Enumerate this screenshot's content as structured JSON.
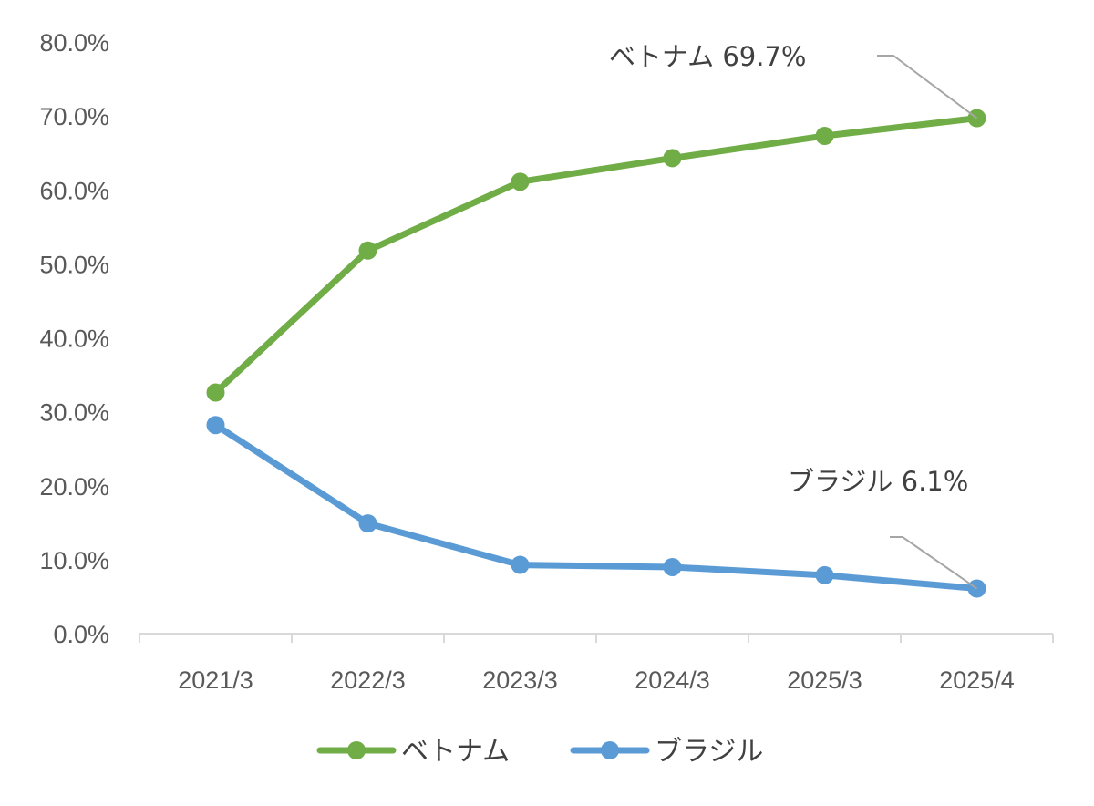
{
  "chart_data": {
    "type": "line",
    "categories": [
      "2021/3",
      "2022/3",
      "2023/3",
      "2024/3",
      "2025/3",
      "2025/4"
    ],
    "series": [
      {
        "name": "ベトナム",
        "values": [
          32.6,
          51.8,
          61.1,
          64.3,
          67.3,
          69.7
        ],
        "color": "#70AD47"
      },
      {
        "name": "ブラジル",
        "values": [
          28.2,
          14.9,
          9.3,
          9.0,
          7.9,
          6.1
        ],
        "color": "#5B9BD5"
      }
    ],
    "yticks": [
      "0.0%",
      "10.0%",
      "20.0%",
      "30.0%",
      "40.0%",
      "50.0%",
      "60.0%",
      "70.0%",
      "80.0%"
    ],
    "ylim": [
      0,
      80
    ],
    "grid": false,
    "legend_position": "bottom",
    "annotations": [
      {
        "text": "ベトナム 69.7%",
        "series": 0,
        "point": 5
      },
      {
        "text": "ブラジル 6.1%",
        "series": 1,
        "point": 5
      }
    ],
    "leader_color": "#A6A6A6",
    "axis_color": "#D9D9D9"
  }
}
